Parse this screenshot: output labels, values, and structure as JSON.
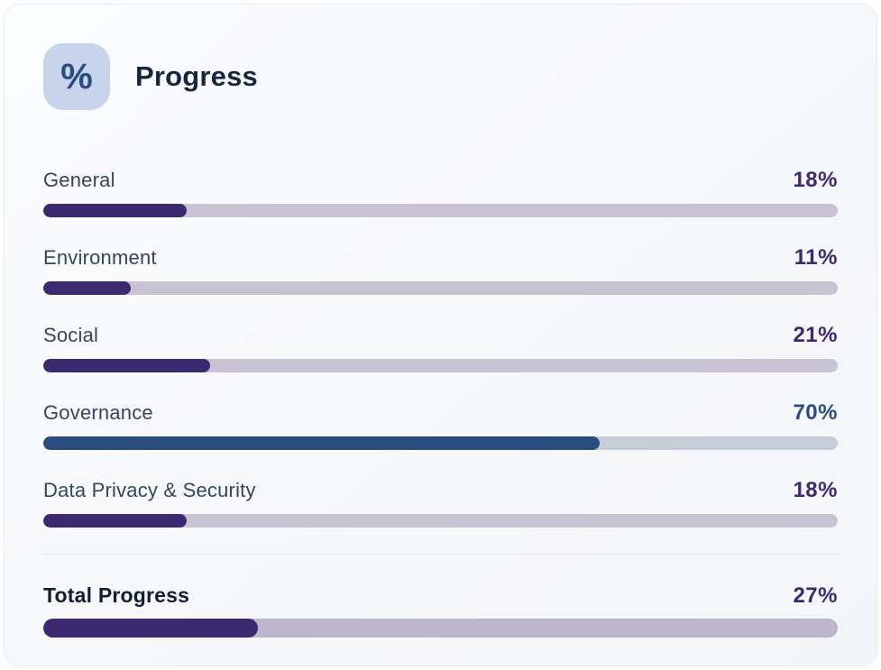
{
  "header": {
    "title": "Progress",
    "icon_glyph": "%"
  },
  "rows": [
    {
      "label": "General",
      "percent": "18%",
      "value": 18,
      "theme": "purple"
    },
    {
      "label": "Environment",
      "percent": "11%",
      "value": 11,
      "theme": "purple"
    },
    {
      "label": "Social",
      "percent": "21%",
      "value": 21,
      "theme": "purple"
    },
    {
      "label": "Governance",
      "percent": "70%",
      "value": 70,
      "theme": "blue"
    },
    {
      "label": "Data Privacy & Security",
      "percent": "18%",
      "value": 18,
      "theme": "purple"
    }
  ],
  "total": {
    "label": "Total Progress",
    "percent": "27%",
    "value": 27,
    "theme": "purple"
  },
  "colors": {
    "purple": {
      "fill": "#3b2a70",
      "track": "#c9c4d3"
    },
    "blue": {
      "fill": "#2b4c7e",
      "track": "#c6ccd8"
    },
    "total_track": "#bcb6ca",
    "label_text": "#33475c",
    "total_label_text": "#121f33",
    "icon_bg": "#c7d4ec",
    "icon_glyph": "#2b4c7e"
  },
  "chart_data": {
    "type": "bar",
    "title": "Progress",
    "orientation": "horizontal",
    "categories": [
      "General",
      "Environment",
      "Social",
      "Governance",
      "Data Privacy & Security"
    ],
    "values": [
      18,
      11,
      21,
      70,
      18
    ],
    "value_labels": [
      "18%",
      "11%",
      "21%",
      "70%",
      "18%"
    ],
    "total": {
      "label": "Total Progress",
      "value": 27,
      "value_label": "27%"
    },
    "xlim": [
      0,
      100
    ],
    "unit": "percent",
    "grid": false,
    "legend": false
  }
}
